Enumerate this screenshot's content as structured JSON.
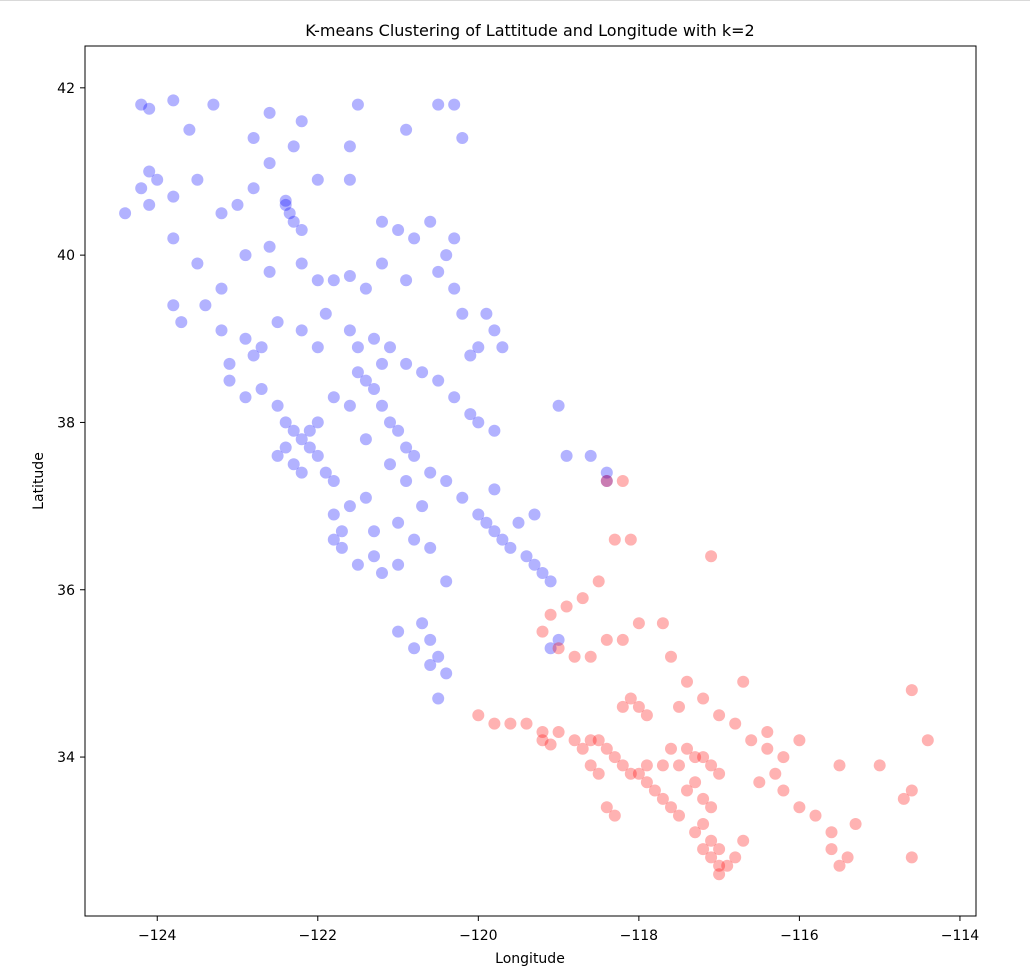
{
  "chart_data": {
    "type": "scatter",
    "title": "K-means Clustering of Lattitude and Longitude with k=2",
    "xlabel": "Longitude",
    "ylabel": "Latitude",
    "xlim": [
      -124.9,
      -113.8
    ],
    "ylim": [
      32.1,
      42.5
    ],
    "xticks": [
      -124,
      -122,
      -120,
      -118,
      -116,
      -114
    ],
    "yticks": [
      34,
      36,
      38,
      40,
      42
    ],
    "xtick_labels": [
      "−124",
      "−122",
      "−120",
      "−118",
      "−116",
      "−114"
    ],
    "ytick_labels": [
      "34",
      "36",
      "38",
      "40",
      "42"
    ],
    "grid": false,
    "marker_alpha": 0.3,
    "series": [
      {
        "color": "#0000ff",
        "points": [
          [
            -124.2,
            41.8
          ],
          [
            -124.1,
            41.75
          ],
          [
            -123.8,
            41.85
          ],
          [
            -123.3,
            41.8
          ],
          [
            -122.6,
            41.7
          ],
          [
            -122.2,
            41.6
          ],
          [
            -121.5,
            41.8
          ],
          [
            -120.5,
            41.8
          ],
          [
            -120.3,
            41.8
          ],
          [
            -123.6,
            41.5
          ],
          [
            -122.8,
            41.4
          ],
          [
            -122.3,
            41.3
          ],
          [
            -121.6,
            41.3
          ],
          [
            -120.9,
            41.5
          ],
          [
            -120.2,
            41.4
          ],
          [
            -124.1,
            41.0
          ],
          [
            -124.2,
            40.8
          ],
          [
            -124.0,
            40.9
          ],
          [
            -124.1,
            40.6
          ],
          [
            -124.4,
            40.5
          ],
          [
            -123.8,
            40.7
          ],
          [
            -123.5,
            40.9
          ],
          [
            -123.2,
            40.5
          ],
          [
            -122.6,
            41.1
          ],
          [
            -122.4,
            40.6
          ],
          [
            -122.35,
            40.5
          ],
          [
            -122.3,
            40.4
          ],
          [
            -122.2,
            40.3
          ],
          [
            -122.4,
            40.65
          ],
          [
            -122.0,
            40.9
          ],
          [
            -121.6,
            40.9
          ],
          [
            -121.2,
            40.4
          ],
          [
            -120.8,
            40.2
          ],
          [
            -120.6,
            40.4
          ],
          [
            -120.3,
            40.2
          ],
          [
            -123.8,
            40.2
          ],
          [
            -123.5,
            39.9
          ],
          [
            -123.2,
            39.6
          ],
          [
            -122.9,
            40.0
          ],
          [
            -122.6,
            39.8
          ],
          [
            -122.2,
            39.9
          ],
          [
            -122.0,
            39.7
          ],
          [
            -121.8,
            39.7
          ],
          [
            -121.6,
            39.75
          ],
          [
            -121.4,
            39.6
          ],
          [
            -121.2,
            39.9
          ],
          [
            -120.9,
            39.7
          ],
          [
            -120.5,
            39.8
          ],
          [
            -120.3,
            39.6
          ],
          [
            -120.2,
            39.3
          ],
          [
            -119.9,
            39.3
          ],
          [
            -119.8,
            39.1
          ],
          [
            -119.7,
            38.9
          ],
          [
            -120.0,
            38.9
          ],
          [
            -120.1,
            38.8
          ],
          [
            -123.8,
            39.4
          ],
          [
            -123.7,
            39.2
          ],
          [
            -123.4,
            39.4
          ],
          [
            -123.2,
            39.1
          ],
          [
            -122.9,
            39.0
          ],
          [
            -122.7,
            38.9
          ],
          [
            -122.5,
            39.2
          ],
          [
            -122.2,
            39.1
          ],
          [
            -121.9,
            39.3
          ],
          [
            -121.6,
            39.1
          ],
          [
            -121.5,
            38.9
          ],
          [
            -121.3,
            39.0
          ],
          [
            -121.1,
            38.9
          ],
          [
            -120.9,
            38.7
          ],
          [
            -120.7,
            38.6
          ],
          [
            -120.5,
            38.5
          ],
          [
            -120.3,
            38.3
          ],
          [
            -120.1,
            38.1
          ],
          [
            -120.0,
            38.0
          ],
          [
            -119.8,
            37.9
          ],
          [
            -123.1,
            38.5
          ],
          [
            -122.9,
            38.3
          ],
          [
            -122.7,
            38.4
          ],
          [
            -122.5,
            38.2
          ],
          [
            -122.4,
            38.0
          ],
          [
            -122.3,
            37.9
          ],
          [
            -122.2,
            37.8
          ],
          [
            -122.1,
            37.7
          ],
          [
            -122.0,
            37.6
          ],
          [
            -121.9,
            37.4
          ],
          [
            -121.8,
            37.3
          ],
          [
            -122.4,
            37.7
          ],
          [
            -122.5,
            37.6
          ],
          [
            -122.3,
            37.5
          ],
          [
            -122.2,
            37.4
          ],
          [
            -122.1,
            37.9
          ],
          [
            -122.0,
            38.0
          ],
          [
            -121.8,
            38.3
          ],
          [
            -121.5,
            38.6
          ],
          [
            -121.4,
            38.5
          ],
          [
            -121.3,
            38.4
          ],
          [
            -121.2,
            38.2
          ],
          [
            -121.0,
            37.9
          ],
          [
            -120.9,
            37.7
          ],
          [
            -120.8,
            37.6
          ],
          [
            -120.6,
            37.4
          ],
          [
            -120.4,
            37.3
          ],
          [
            -120.2,
            37.1
          ],
          [
            -120.0,
            36.9
          ],
          [
            -119.9,
            36.8
          ],
          [
            -119.8,
            36.7
          ],
          [
            -119.7,
            36.6
          ],
          [
            -119.6,
            36.5
          ],
          [
            -119.4,
            36.4
          ],
          [
            -119.3,
            36.3
          ],
          [
            -119.2,
            36.2
          ],
          [
            -119.1,
            36.1
          ],
          [
            -119.5,
            36.8
          ],
          [
            -119.3,
            36.9
          ],
          [
            -119.8,
            37.2
          ],
          [
            -121.8,
            36.9
          ],
          [
            -121.7,
            36.7
          ],
          [
            -121.8,
            36.6
          ],
          [
            -121.7,
            36.5
          ],
          [
            -121.5,
            36.3
          ],
          [
            -121.3,
            36.4
          ],
          [
            -121.2,
            36.2
          ],
          [
            -121.0,
            36.3
          ],
          [
            -121.4,
            37.1
          ],
          [
            -121.6,
            37.0
          ],
          [
            -121.3,
            36.7
          ],
          [
            -121.0,
            36.8
          ],
          [
            -120.8,
            36.6
          ],
          [
            -120.6,
            36.5
          ],
          [
            -120.4,
            36.1
          ],
          [
            -120.7,
            35.6
          ],
          [
            -120.6,
            35.4
          ],
          [
            -120.5,
            35.2
          ],
          [
            -120.4,
            35.0
          ],
          [
            -120.6,
            35.1
          ],
          [
            -120.5,
            34.7
          ],
          [
            -121.0,
            35.5
          ],
          [
            -120.8,
            35.3
          ],
          [
            -119.0,
            35.4
          ],
          [
            -119.1,
            35.3
          ],
          [
            -118.9,
            37.6
          ],
          [
            -118.6,
            37.6
          ],
          [
            -118.4,
            37.4
          ],
          [
            -118.4,
            37.3
          ],
          [
            -119.0,
            38.2
          ],
          [
            -120.4,
            40.0
          ],
          [
            -121.0,
            40.3
          ],
          [
            -122.6,
            40.1
          ],
          [
            -123.0,
            40.6
          ],
          [
            -122.8,
            40.8
          ],
          [
            -123.1,
            38.7
          ],
          [
            -122.8,
            38.8
          ],
          [
            -122.0,
            38.9
          ],
          [
            -121.6,
            38.2
          ],
          [
            -121.4,
            37.8
          ],
          [
            -121.1,
            37.5
          ],
          [
            -120.9,
            37.3
          ],
          [
            -120.7,
            37.0
          ],
          [
            -121.1,
            38.0
          ],
          [
            -121.2,
            38.7
          ]
        ]
      },
      {
        "color": "#ff0000",
        "points": [
          [
            -118.4,
            37.3
          ],
          [
            -118.2,
            37.3
          ],
          [
            -118.3,
            36.6
          ],
          [
            -118.1,
            36.6
          ],
          [
            -117.1,
            36.4
          ],
          [
            -118.5,
            36.1
          ],
          [
            -118.7,
            35.9
          ],
          [
            -118.9,
            35.8
          ],
          [
            -119.1,
            35.7
          ],
          [
            -119.2,
            35.5
          ],
          [
            -119.0,
            35.3
          ],
          [
            -118.8,
            35.2
          ],
          [
            -118.6,
            35.2
          ],
          [
            -118.4,
            35.4
          ],
          [
            -118.2,
            35.4
          ],
          [
            -118.0,
            35.6
          ],
          [
            -117.7,
            35.6
          ],
          [
            -117.6,
            35.2
          ],
          [
            -117.4,
            34.9
          ],
          [
            -117.2,
            34.7
          ],
          [
            -117.0,
            34.5
          ],
          [
            -116.8,
            34.4
          ],
          [
            -116.6,
            34.2
          ],
          [
            -116.4,
            34.1
          ],
          [
            -116.2,
            34.0
          ],
          [
            -118.5,
            34.2
          ],
          [
            -118.4,
            34.1
          ],
          [
            -118.3,
            34.0
          ],
          [
            -118.2,
            33.9
          ],
          [
            -118.1,
            33.8
          ],
          [
            -118.0,
            33.8
          ],
          [
            -117.9,
            33.7
          ],
          [
            -117.8,
            33.6
          ],
          [
            -117.7,
            33.5
          ],
          [
            -118.6,
            34.2
          ],
          [
            -118.8,
            34.2
          ],
          [
            -119.0,
            34.3
          ],
          [
            -119.2,
            34.3
          ],
          [
            -119.4,
            34.4
          ],
          [
            -119.6,
            34.4
          ],
          [
            -119.8,
            34.4
          ],
          [
            -120.0,
            34.5
          ],
          [
            -117.6,
            34.1
          ],
          [
            -117.4,
            34.1
          ],
          [
            -117.3,
            34.0
          ],
          [
            -117.2,
            34.0
          ],
          [
            -117.1,
            33.9
          ],
          [
            -117.0,
            33.8
          ],
          [
            -117.3,
            33.7
          ],
          [
            -117.2,
            33.5
          ],
          [
            -117.1,
            33.4
          ],
          [
            -117.2,
            33.2
          ],
          [
            -117.1,
            33.0
          ],
          [
            -117.0,
            32.9
          ],
          [
            -117.1,
            32.8
          ],
          [
            -117.0,
            32.7
          ],
          [
            -116.9,
            32.7
          ],
          [
            -117.0,
            32.6
          ],
          [
            -116.8,
            32.8
          ],
          [
            -116.7,
            33.0
          ],
          [
            -116.5,
            33.7
          ],
          [
            -116.3,
            33.8
          ],
          [
            -116.2,
            33.6
          ],
          [
            -116.0,
            33.4
          ],
          [
            -115.8,
            33.3
          ],
          [
            -115.6,
            32.9
          ],
          [
            -115.5,
            32.7
          ],
          [
            -115.4,
            32.8
          ],
          [
            -115.6,
            33.1
          ],
          [
            -115.3,
            33.2
          ],
          [
            -114.6,
            34.8
          ],
          [
            -114.6,
            33.6
          ],
          [
            -114.7,
            33.5
          ],
          [
            -114.6,
            32.8
          ],
          [
            -114.4,
            34.2
          ],
          [
            -118.2,
            34.6
          ],
          [
            -118.1,
            34.7
          ],
          [
            -118.0,
            34.6
          ],
          [
            -117.9,
            34.5
          ],
          [
            -117.5,
            34.6
          ],
          [
            -116.7,
            34.9
          ],
          [
            -116.4,
            34.3
          ],
          [
            -116.0,
            34.2
          ],
          [
            -115.5,
            33.9
          ],
          [
            -115.0,
            33.9
          ],
          [
            -118.3,
            33.3
          ],
          [
            -118.4,
            33.4
          ],
          [
            -119.2,
            34.2
          ],
          [
            -119.1,
            34.15
          ],
          [
            -118.7,
            34.1
          ],
          [
            -118.6,
            33.9
          ],
          [
            -118.5,
            33.8
          ],
          [
            -117.9,
            33.9
          ],
          [
            -117.7,
            33.9
          ],
          [
            -117.5,
            33.9
          ],
          [
            -117.4,
            33.6
          ],
          [
            -117.6,
            33.4
          ],
          [
            -117.5,
            33.3
          ],
          [
            -117.3,
            33.1
          ],
          [
            -117.2,
            32.9
          ]
        ]
      }
    ]
  }
}
